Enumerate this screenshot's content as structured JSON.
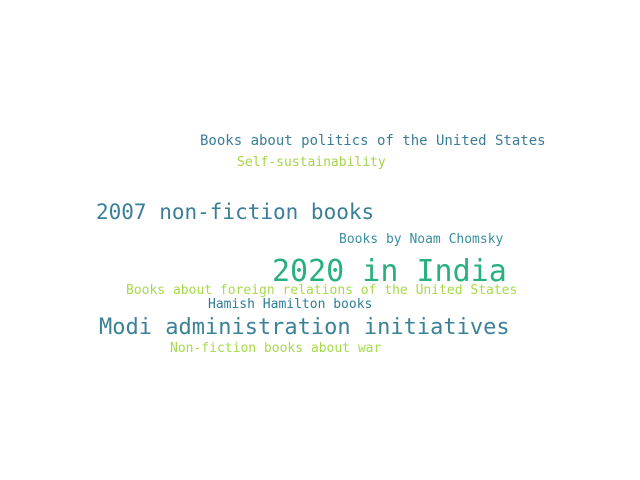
{
  "word_cloud": {
    "words": [
      {
        "text": "Books about politics of the United States",
        "color": "#3b7d98"
      },
      {
        "text": "Self-sustainability",
        "color": "#a5d44b"
      },
      {
        "text": "2007 non-fiction books",
        "color": "#3a7f97"
      },
      {
        "text": "Books by Noam Chomsky",
        "color": "#3a8fa0"
      },
      {
        "text": "2020 in India",
        "color": "#2ab07f"
      },
      {
        "text": "Books about foreign relations of the United States",
        "color": "#a8d94a"
      },
      {
        "text": "Hamish Hamilton books",
        "color": "#2f7e96"
      },
      {
        "text": "Modi administration initiatives",
        "color": "#3b8296"
      },
      {
        "text": "Non-fiction books about war",
        "color": "#a6d94c"
      }
    ]
  }
}
